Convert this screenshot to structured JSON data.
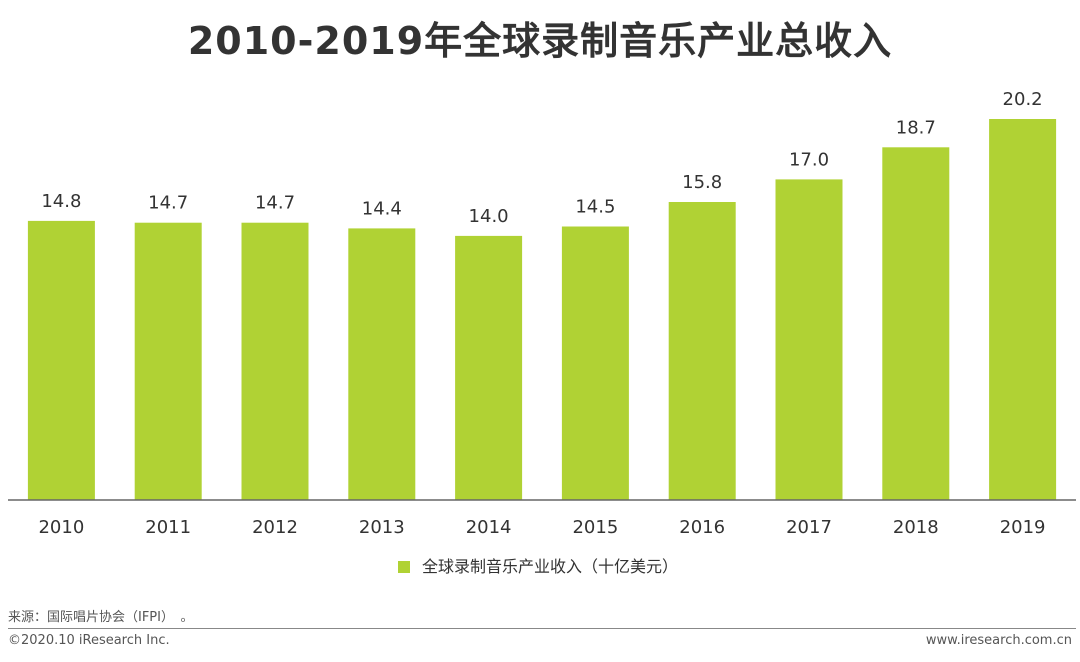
{
  "chart_data": {
    "type": "bar",
    "title": "2010-2019年全球录制音乐产业总收入",
    "categories": [
      "2010",
      "2011",
      "2012",
      "2013",
      "2014",
      "2015",
      "2016",
      "2017",
      "2018",
      "2019"
    ],
    "series": [
      {
        "name": "全球录制音乐产业收入（十亿美元）",
        "values": [
          14.8,
          14.7,
          14.7,
          14.4,
          14.0,
          14.5,
          15.8,
          17.0,
          18.7,
          20.2
        ],
        "labels": [
          "14.8",
          "14.7",
          "14.7",
          "14.4",
          "14.0",
          "14.5",
          "15.8",
          "17.0",
          "18.7",
          "20.2"
        ],
        "color": "#b0d234"
      }
    ],
    "ylim": [
      0,
      20.2
    ],
    "grid": false,
    "legend_position": "bottom-center"
  },
  "source": "来源：国际唱片协会（IFPI）　。",
  "footer": {
    "copyright": "©2020.10 iResearch Inc.",
    "website": "www.iresearch.com.cn"
  }
}
